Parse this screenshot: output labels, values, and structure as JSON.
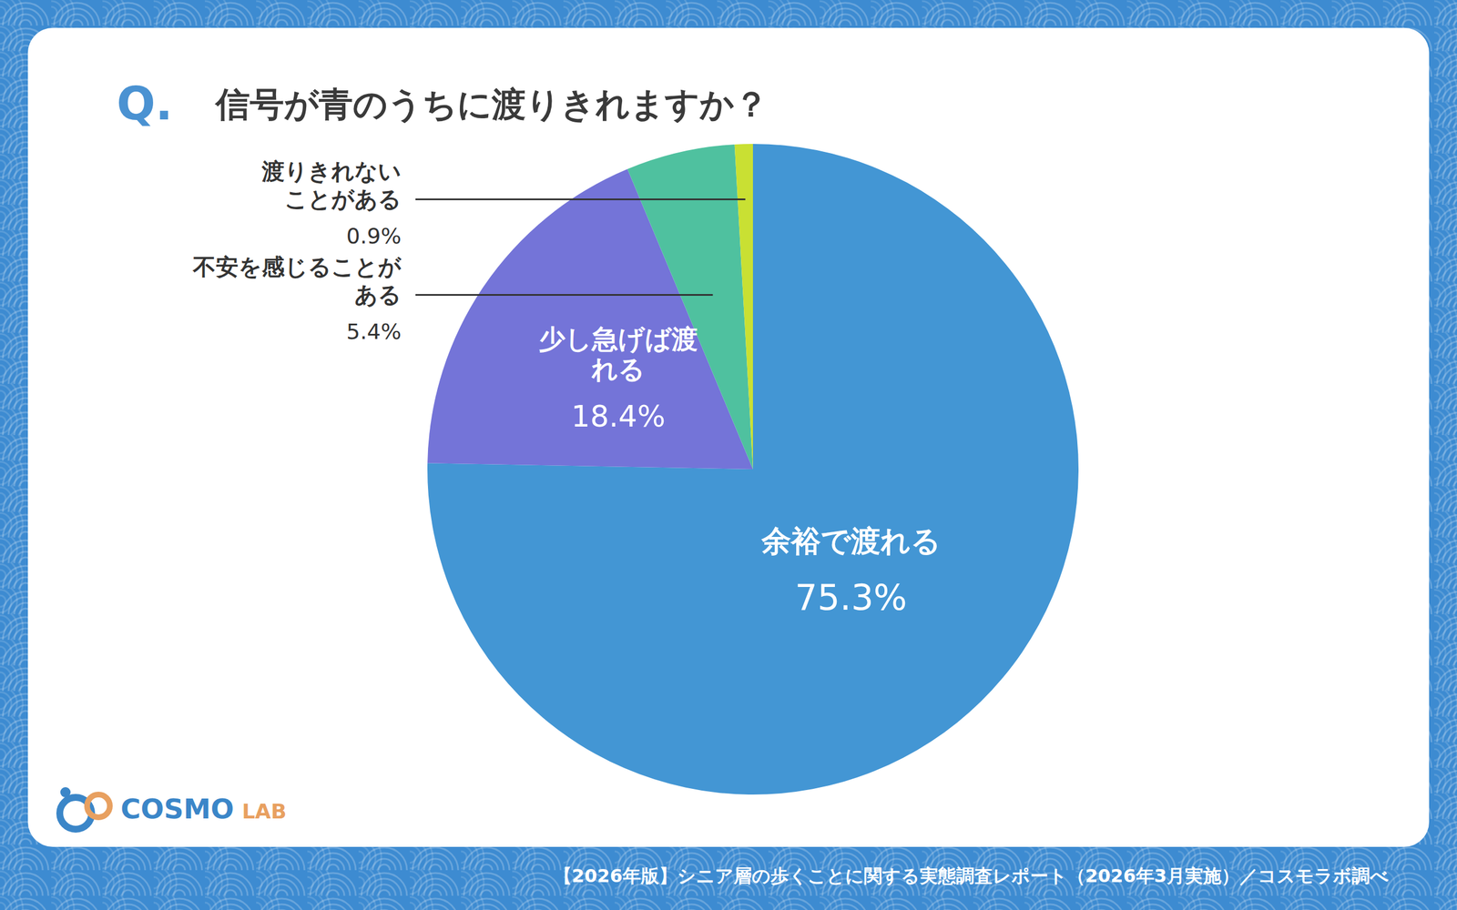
{
  "chart_data": {
    "type": "pie",
    "question_mark": "Q.",
    "title": "信号が青のうちに渡りきれますか？",
    "categories": [
      "余裕で渡れる",
      "少し急げば渡れる",
      "不安を感じることがある",
      "渡りきれないことがある"
    ],
    "values": [
      75.3,
      18.4,
      5.4,
      0.9
    ],
    "value_labels": [
      "75.3%",
      "18.4%",
      "5.4%",
      "0.9%"
    ],
    "colors": [
      "#4396d4",
      "#7474d8",
      "#4fc19f",
      "#c9e033"
    ],
    "data_labels": true,
    "source": "【2026年版】シニア層の歩くことに関する実態調査レポート（2026年3月実施）／コスモラボ調べ",
    "logo": "COSMO LAB"
  }
}
